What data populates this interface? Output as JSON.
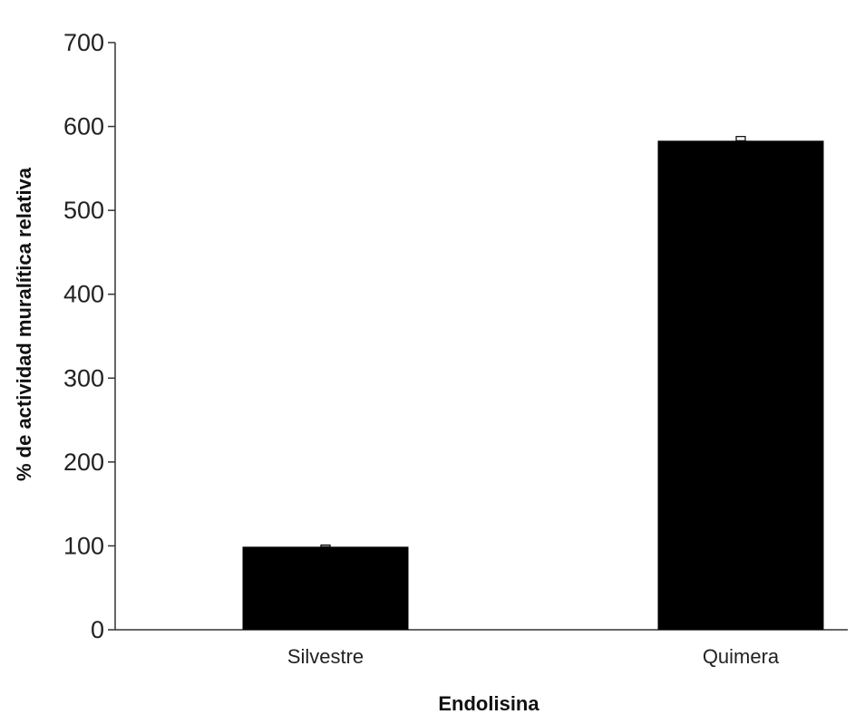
{
  "chart_data": {
    "type": "bar",
    "title": "",
    "xlabel": "Endolisina",
    "ylabel": "% de actividad muralítica relativa",
    "categories": [
      "Silvestre",
      "Quimera"
    ],
    "values": [
      99,
      583
    ],
    "errors": [
      2,
      5
    ],
    "ylim": [
      0,
      700
    ],
    "yticks": [
      0,
      100,
      200,
      300,
      400,
      500,
      600,
      700
    ],
    "grid": false,
    "legend": "none",
    "bar_color": "#000000"
  }
}
